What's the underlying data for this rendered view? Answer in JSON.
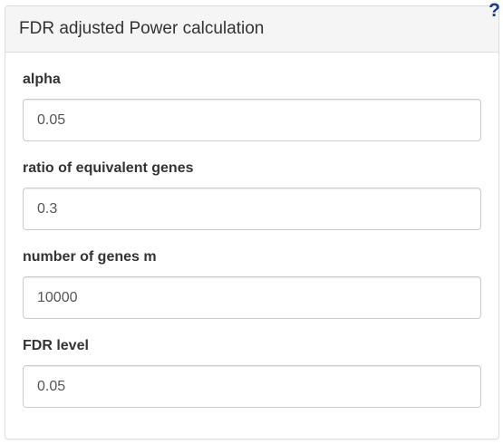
{
  "panel": {
    "title": "FDR adjusted Power calculation",
    "help_glyph": "?"
  },
  "fields": [
    {
      "label": "alpha",
      "value": "0.05"
    },
    {
      "label": "ratio of equivalent genes",
      "value": "0.3"
    },
    {
      "label": "number of genes m",
      "value": "10000"
    },
    {
      "label": "FDR level",
      "value": "0.05"
    }
  ],
  "colors": {
    "heading_bg": "#f5f5f5",
    "border": "#dddddd",
    "help_icon": "#1a3a8f",
    "text": "#333333"
  }
}
